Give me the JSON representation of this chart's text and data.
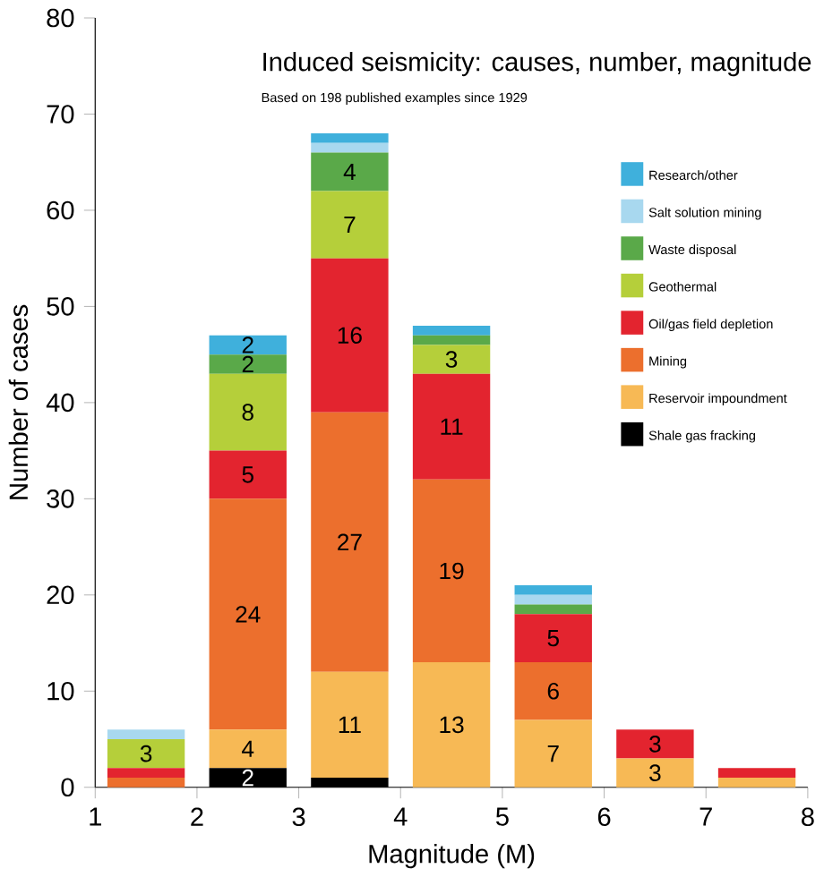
{
  "chart_data": {
    "type": "bar",
    "title": "Induced seismicity: causes, number, magnitude",
    "subtitle": "Based on 198 published examples since 1929",
    "xlabel": "Magnitude (M)",
    "ylabel": "Number of cases",
    "x": [
      1.5,
      2.5,
      3.5,
      4.5,
      5.5,
      6.5,
      7.5
    ],
    "xlim": [
      1,
      8
    ],
    "xticks": [
      1,
      2,
      3,
      4,
      5,
      6,
      7,
      8
    ],
    "ylim": [
      0,
      80
    ],
    "yticks": [
      0,
      10,
      20,
      30,
      40,
      50,
      60,
      70,
      80
    ],
    "stacked": true,
    "grid": false,
    "legend": "right",
    "series": [
      {
        "name": "Shale gas fracking",
        "color": "#000000",
        "values": [
          0,
          2,
          1,
          0,
          0,
          0,
          0
        ],
        "value_labels": [
          null,
          "2",
          null,
          null,
          null,
          null,
          null
        ]
      },
      {
        "name": "Reservoir impoundment",
        "color": "#f7b955",
        "values": [
          0,
          4,
          11,
          13,
          7,
          3,
          1
        ],
        "value_labels": [
          null,
          "4",
          "11",
          "13",
          "7",
          "3",
          null
        ]
      },
      {
        "name": "Mining",
        "color": "#ec6f2d",
        "values": [
          1,
          24,
          27,
          19,
          6,
          0,
          0
        ],
        "value_labels": [
          null,
          "24",
          "27",
          "19",
          "6",
          null,
          null
        ]
      },
      {
        "name": "Oil/gas field depletion",
        "color": "#e3242f",
        "values": [
          1,
          5,
          16,
          11,
          5,
          3,
          1
        ],
        "value_labels": [
          null,
          "5",
          "16",
          "11",
          "5",
          "3",
          null
        ]
      },
      {
        "name": "Geothermal",
        "color": "#b5cf3a",
        "values": [
          3,
          8,
          7,
          3,
          0,
          0,
          0
        ],
        "value_labels": [
          "3",
          "8",
          "7",
          "3",
          null,
          null,
          null
        ]
      },
      {
        "name": "Waste disposal",
        "color": "#5aa949",
        "values": [
          0,
          2,
          4,
          1,
          1,
          0,
          0
        ],
        "value_labels": [
          null,
          "2",
          "4",
          null,
          null,
          null,
          null
        ]
      },
      {
        "name": "Salt solution mining",
        "color": "#a8d8ef",
        "values": [
          1,
          0,
          1,
          0,
          1,
          0,
          0
        ]
      },
      {
        "name": "Research/other",
        "color": "#3fb0dc",
        "values": [
          0,
          2,
          1,
          1,
          1,
          0,
          0
        ],
        "value_labels": [
          null,
          "2",
          null,
          null,
          null,
          null,
          null
        ]
      }
    ]
  }
}
